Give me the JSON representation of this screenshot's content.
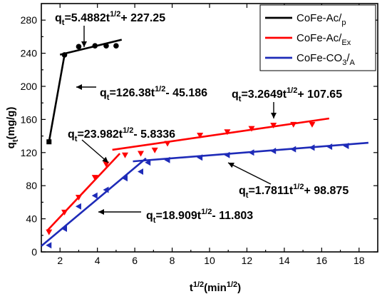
{
  "chart_data": {
    "type": "scatter",
    "xlim": [
      1,
      19
    ],
    "ylim": [
      0,
      300
    ],
    "xticks": [
      2,
      4,
      6,
      8,
      10,
      12,
      14,
      16,
      18
    ],
    "yticks": [
      0,
      40,
      80,
      120,
      160,
      200,
      240,
      280
    ],
    "xlabel": {
      "main": "t",
      "sup": "1/2",
      "rest": "(min",
      "rest_sup": "1/2",
      "close": ")"
    },
    "ylabel": {
      "main": "q",
      "sub": "t",
      "rest": "(mg/g)"
    },
    "grid": false,
    "legend_position": "top-right",
    "series": [
      {
        "name": "CoFe-Ac/",
        "name_sub": "p",
        "color": "#000000",
        "marker": "square",
        "points": [
          [
            1.41,
            133
          ],
          [
            2.24,
            238
          ],
          [
            3.0,
            248
          ],
          [
            3.87,
            249
          ],
          [
            4.47,
            249
          ],
          [
            5.0,
            249
          ]
        ],
        "fits": [
          {
            "slope": 126.38,
            "intercept": -45.186,
            "x_range": [
              1.41,
              2.24
            ]
          },
          {
            "slope": 5.4882,
            "intercept": 227.25,
            "x_range": [
              2.0,
              5.3
            ]
          }
        ]
      },
      {
        "name": "CoFe-Ac/",
        "name_sub": "Ex",
        "color": "#ff0000",
        "marker": "triangle-down",
        "points": [
          [
            1.41,
            24
          ],
          [
            2.24,
            48
          ],
          [
            3.0,
            66
          ],
          [
            3.87,
            90
          ],
          [
            4.47,
            106
          ],
          [
            5.48,
            117
          ],
          [
            6.32,
            119
          ],
          [
            7.07,
            123
          ],
          [
            7.75,
            131
          ],
          [
            9.49,
            141
          ],
          [
            10.95,
            145
          ],
          [
            12.25,
            149
          ],
          [
            13.42,
            153
          ],
          [
            14.49,
            154
          ],
          [
            15.49,
            154
          ]
        ],
        "fits": [
          {
            "slope": 23.982,
            "intercept": -5.8336,
            "x_range": [
              1.3,
              5.2
            ]
          },
          {
            "slope": 3.2649,
            "intercept": 107.65,
            "x_range": [
              4.8,
              16.4
            ]
          }
        ]
      },
      {
        "name": "CoFe-CO",
        "name_sub": "3",
        "name_tail": "/",
        "name_sub2": "A",
        "color": "#1e2bb8",
        "marker": "triangle-left",
        "points": [
          [
            1.41,
            8
          ],
          [
            2.24,
            28
          ],
          [
            3.0,
            55
          ],
          [
            3.87,
            68
          ],
          [
            4.47,
            75
          ],
          [
            5.48,
            89
          ],
          [
            6.32,
            97
          ],
          [
            6.71,
            108
          ],
          [
            7.75,
            111
          ],
          [
            9.49,
            114
          ],
          [
            10.95,
            117
          ],
          [
            12.25,
            120
          ],
          [
            13.42,
            122
          ],
          [
            14.49,
            124
          ],
          [
            15.49,
            126
          ],
          [
            16.43,
            127
          ],
          [
            17.32,
            128
          ]
        ],
        "fits": [
          {
            "slope": 18.909,
            "intercept": -11.803,
            "x_range": [
              1.0,
              6.6
            ]
          },
          {
            "slope": 1.7811,
            "intercept": 98.875,
            "x_range": [
              5.9,
              18.5
            ]
          }
        ]
      }
    ],
    "annotations": [
      {
        "q": "q",
        "sub": "t",
        "mid": "=5.4882t",
        "sup": "1/2",
        "tail": "+ 227.25"
      },
      {
        "q": "q",
        "sub": "t",
        "mid": "=126.38t",
        "sup": "1/2",
        "tail": "- 45.186"
      },
      {
        "q": "q",
        "sub": "t",
        "mid": "=3.2649t",
        "sup": "1/2",
        "tail": "+ 107.65"
      },
      {
        "q": "q",
        "sub": "t",
        "mid": "=23.982t",
        "sup": "1/2",
        "tail": "- 5.8336"
      },
      {
        "q": "q",
        "sub": "t",
        "mid": "=1.7811t",
        "sup": "1/2",
        "tail": "+ 98.875"
      },
      {
        "q": "q",
        "sub": "t",
        "mid": "=18.909t",
        "sup": "1/2",
        "tail": "- 11.803"
      }
    ]
  }
}
